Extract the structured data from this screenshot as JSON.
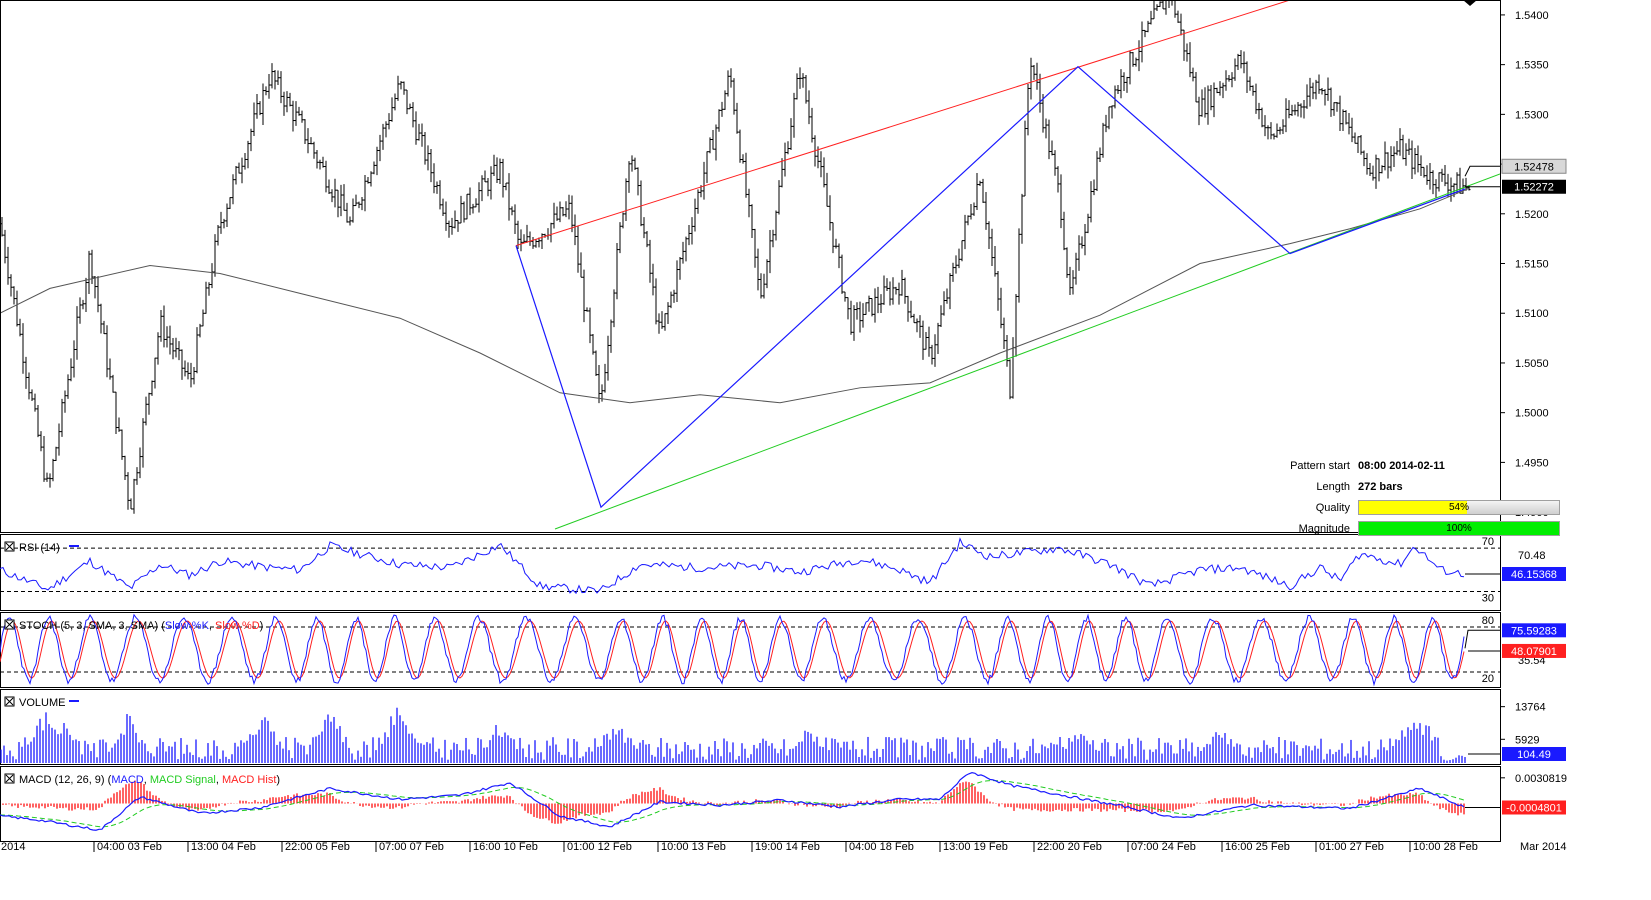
{
  "colors": {
    "price": "#000000",
    "ma": "#555555",
    "resistance": "#ff2020",
    "support": "#22cc22",
    "zigzag": "#1a1aff",
    "indicator_line": "#1a1aff",
    "signal_line": "#ff2020",
    "macd_signal": "#22cc22",
    "hist": "#ff2020",
    "quality_fill": "#ffff00",
    "magnitude_fill": "#00ee00"
  },
  "pattern_info": {
    "start_label": "Pattern start",
    "start_value": "08:00 2014-02-11",
    "length_label": "Length",
    "length_value": "272 bars",
    "quality_label": "Quality",
    "quality_value": "54%",
    "quality": 0.54,
    "magnitude_label": "Magnitude",
    "magnitude_value": "100%",
    "magnitude": 1.0
  },
  "chart_data": [
    {
      "panel": "price",
      "type": "ohlc",
      "ylim": [
        1.488,
        1.5415
      ],
      "yticks": [
        "1.4900",
        "1.4950",
        "1.5000",
        "1.5050",
        "1.5100",
        "1.5150",
        "1.5200",
        "1.5250",
        "1.5300",
        "1.5350",
        "1.5400"
      ],
      "last_price": "1.52272",
      "upper_marker": "1.52478",
      "pivots": [
        [
          0,
          1.519
        ],
        [
          48,
          1.492
        ],
        [
          90,
          1.516
        ],
        [
          130,
          1.4905
        ],
        [
          160,
          1.509
        ],
        [
          190,
          1.503
        ],
        [
          220,
          1.519
        ],
        [
          270,
          1.534
        ],
        [
          300,
          1.529
        ],
        [
          350,
          1.519
        ],
        [
          400,
          1.533
        ],
        [
          450,
          1.519
        ],
        [
          500,
          1.5245
        ],
        [
          520,
          1.5165
        ],
        [
          570,
          1.5205
        ],
        [
          600,
          1.5005
        ],
        [
          630,
          1.527
        ],
        [
          660,
          1.5075
        ],
        [
          730,
          1.534
        ],
        [
          760,
          1.5115
        ],
        [
          800,
          1.5345
        ],
        [
          850,
          1.509
        ],
        [
          900,
          1.513
        ],
        [
          930,
          1.5055
        ],
        [
          980,
          1.524
        ],
        [
          1010,
          1.5025
        ],
        [
          1030,
          1.536
        ],
        [
          1060,
          1.5215
        ],
        [
          1070,
          1.5115
        ],
        [
          1110,
          1.5315
        ],
        [
          1170,
          1.5425
        ],
        [
          1200,
          1.5305
        ],
        [
          1240,
          1.5355
        ],
        [
          1270,
          1.5275
        ],
        [
          1320,
          1.5335
        ],
        [
          1370,
          1.5245
        ],
        [
          1400,
          1.5265
        ],
        [
          1430,
          1.5238
        ],
        [
          1470,
          1.5225
        ]
      ],
      "ma_pivots": [
        [
          0,
          1.51
        ],
        [
          50,
          1.5125
        ],
        [
          150,
          1.5148
        ],
        [
          220,
          1.514
        ],
        [
          300,
          1.512
        ],
        [
          400,
          1.5095
        ],
        [
          480,
          1.506
        ],
        [
          560,
          1.502
        ],
        [
          630,
          1.501
        ],
        [
          700,
          1.5018
        ],
        [
          780,
          1.501
        ],
        [
          860,
          1.5025
        ],
        [
          930,
          1.503
        ],
        [
          1000,
          1.506
        ],
        [
          1100,
          1.5098
        ],
        [
          1200,
          1.515
        ],
        [
          1290,
          1.517
        ],
        [
          1350,
          1.5185
        ],
        [
          1420,
          1.5205
        ],
        [
          1470,
          1.5226
        ]
      ],
      "resistance_line": [
        [
          516,
          1.5168
        ],
        [
          1290,
          1.5415
        ]
      ],
      "support_line": [
        [
          555,
          1.4883
        ],
        [
          1500,
          1.524
        ]
      ],
      "zigzag": [
        [
          516,
          1.5168
        ],
        [
          601,
          1.4905
        ],
        [
          1078,
          1.5348
        ],
        [
          1290,
          1.516
        ],
        [
          1465,
          1.5225
        ]
      ]
    },
    {
      "panel": "rsi",
      "title": "RSI (14)",
      "type": "line",
      "ylim": [
        13,
        83
      ],
      "levels": [
        70,
        30
      ],
      "level_labels": [
        "70",
        "30"
      ],
      "side_label": "70.48",
      "last_value": "46.15368",
      "pivots": [
        [
          0,
          50
        ],
        [
          48,
          32
        ],
        [
          90,
          58
        ],
        [
          130,
          33
        ],
        [
          160,
          55
        ],
        [
          190,
          45
        ],
        [
          220,
          58
        ],
        [
          270,
          52
        ],
        [
          300,
          50
        ],
        [
          330,
          72
        ],
        [
          400,
          55
        ],
        [
          450,
          52
        ],
        [
          500,
          73
        ],
        [
          540,
          35
        ],
        [
          600,
          30
        ],
        [
          640,
          55
        ],
        [
          700,
          52
        ],
        [
          760,
          54
        ],
        [
          800,
          48
        ],
        [
          860,
          60
        ],
        [
          900,
          50
        ],
        [
          930,
          38
        ],
        [
          960,
          75
        ],
        [
          990,
          62
        ],
        [
          1060,
          70
        ],
        [
          1110,
          55
        ],
        [
          1150,
          35
        ],
        [
          1200,
          50
        ],
        [
          1240,
          52
        ],
        [
          1290,
          35
        ],
        [
          1320,
          52
        ],
        [
          1340,
          40
        ],
        [
          1360,
          65
        ],
        [
          1400,
          55
        ],
        [
          1415,
          72
        ],
        [
          1440,
          50
        ],
        [
          1465,
          46
        ]
      ]
    },
    {
      "panel": "stoch",
      "title": "STOCH (5, 3, SMA, 3, SMA)",
      "type": "line",
      "series": [
        {
          "name": "Slow %K"
        },
        {
          "name": "Slow %D"
        }
      ],
      "ylim": [
        0,
        100
      ],
      "levels": [
        80,
        20
      ],
      "level_labels": [
        "80",
        "20"
      ],
      "side_label": "35.54",
      "last_k": "75.59283",
      "last_d": "48.07901",
      "cycles": 34
    },
    {
      "panel": "volume",
      "title": "VOLUME",
      "type": "bar",
      "ylim": [
        0,
        18000
      ],
      "yticks": [
        "5929",
        "13764"
      ],
      "last_value": "104.49",
      "spikes": [
        [
          45,
          14000
        ],
        [
          62,
          11000
        ],
        [
          128,
          13000
        ],
        [
          262,
          13500
        ],
        [
          330,
          15000
        ],
        [
          398,
          15500
        ],
        [
          500,
          11000
        ],
        [
          615,
          11000
        ],
        [
          810,
          10000
        ],
        [
          1080,
          9500
        ],
        [
          1220,
          9000
        ],
        [
          1410,
          11500
        ],
        [
          1425,
          12000
        ]
      ]
    },
    {
      "panel": "macd",
      "title": "MACD (12, 26, 9)",
      "type": "line",
      "series": [
        {
          "name": "MACD"
        },
        {
          "name": "MACD Signal"
        },
        {
          "name": "MACD Hist"
        }
      ],
      "ylim": [
        -0.0045,
        0.0045
      ],
      "ytick": "0.0030819",
      "last_value": "-0.0004801",
      "pivots": [
        [
          0,
          -0.0015
        ],
        [
          40,
          -0.002
        ],
        [
          100,
          -0.0032
        ],
        [
          140,
          0.0008
        ],
        [
          200,
          -0.0012
        ],
        [
          260,
          -0.0005
        ],
        [
          330,
          0.0018
        ],
        [
          400,
          0.0005
        ],
        [
          460,
          0.001
        ],
        [
          510,
          0.0025
        ],
        [
          560,
          -0.0015
        ],
        [
          610,
          -0.0028
        ],
        [
          660,
          0.0002
        ],
        [
          720,
          -0.0002
        ],
        [
          780,
          0.0004
        ],
        [
          840,
          -0.0004
        ],
        [
          900,
          0.0005
        ],
        [
          940,
          0.0005
        ],
        [
          970,
          0.0038
        ],
        [
          1010,
          0.0022
        ],
        [
          1080,
          0.0006
        ],
        [
          1130,
          -0.0005
        ],
        [
          1180,
          -0.0018
        ],
        [
          1250,
          -0.0002
        ],
        [
          1300,
          -0.0004
        ],
        [
          1350,
          -0.0006
        ],
        [
          1420,
          0.0018
        ],
        [
          1465,
          -0.0005
        ]
      ]
    }
  ],
  "x_labels": [
    "2014",
    "04:00 03 Feb",
    "13:00 04 Feb",
    "22:00 05 Feb",
    "07:00 07 Feb",
    "16:00 10 Feb",
    "01:00 12 Feb",
    "10:00 13 Feb",
    "19:00 14 Feb",
    "04:00 18 Feb",
    "13:00 19 Feb",
    "22:00 20 Feb",
    "07:00 24 Feb",
    "16:00 25 Feb",
    "01:00 27 Feb",
    "10:00 28 Feb",
    "Mar 2014"
  ]
}
